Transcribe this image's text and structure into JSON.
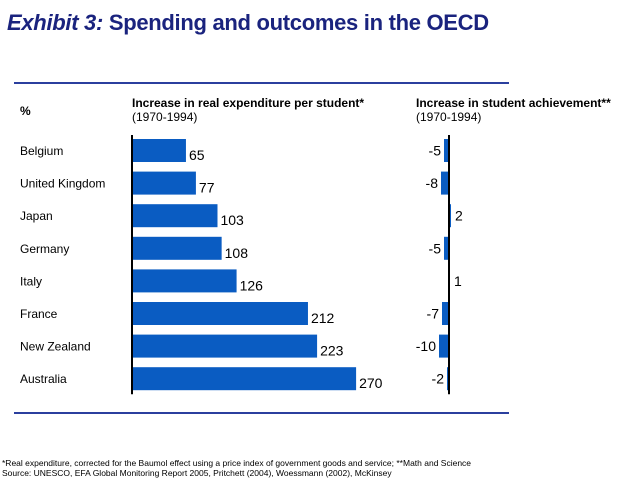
{
  "title_italic": "Exhibit 3:",
  "title_rest": " Spending and outcomes in the OECD",
  "unit_label": "%",
  "footnotes": [
    "*Real expenditure, corrected for the Baumol effect using a price index of government goods and service; **Math and Science",
    "Source: UNESCO, EFA Global Monitoring Report 2005, Pritchett (2004), Woessmann (2002), McKinsey"
  ],
  "colors": {
    "bar": "#0a5cc2",
    "title": "#1a237e",
    "rule": "#2b3f9e"
  },
  "chart_data": [
    {
      "type": "bar",
      "orientation": "horizontal",
      "title": "Increase in real expenditure per student*",
      "subtitle": "(1970-1994)",
      "categories": [
        "Belgium",
        "United Kingdom",
        "Japan",
        "Germany",
        "Italy",
        "France",
        "New Zealand",
        "Australia"
      ],
      "values": [
        65,
        77,
        103,
        108,
        126,
        212,
        223,
        270
      ],
      "data_labels": [
        "65",
        "77",
        "103",
        "108",
        "126",
        "212",
        "223",
        "270"
      ],
      "xlim": [
        0,
        300
      ],
      "grid": false
    },
    {
      "type": "bar",
      "orientation": "horizontal",
      "title": "Increase in student achievement**",
      "subtitle": "(1970-1994)",
      "categories": [
        "Belgium",
        "United Kingdom",
        "Japan",
        "Germany",
        "Italy",
        "France",
        "New Zealand",
        "Australia"
      ],
      "values": [
        -5,
        -8,
        2,
        -5,
        1,
        -7,
        -10,
        -2
      ],
      "data_labels": [
        "-5",
        "-8",
        "2",
        "-5",
        "1",
        "-7",
        "-10",
        "-2"
      ],
      "xlim": [
        -20,
        20
      ],
      "grid": false
    }
  ]
}
